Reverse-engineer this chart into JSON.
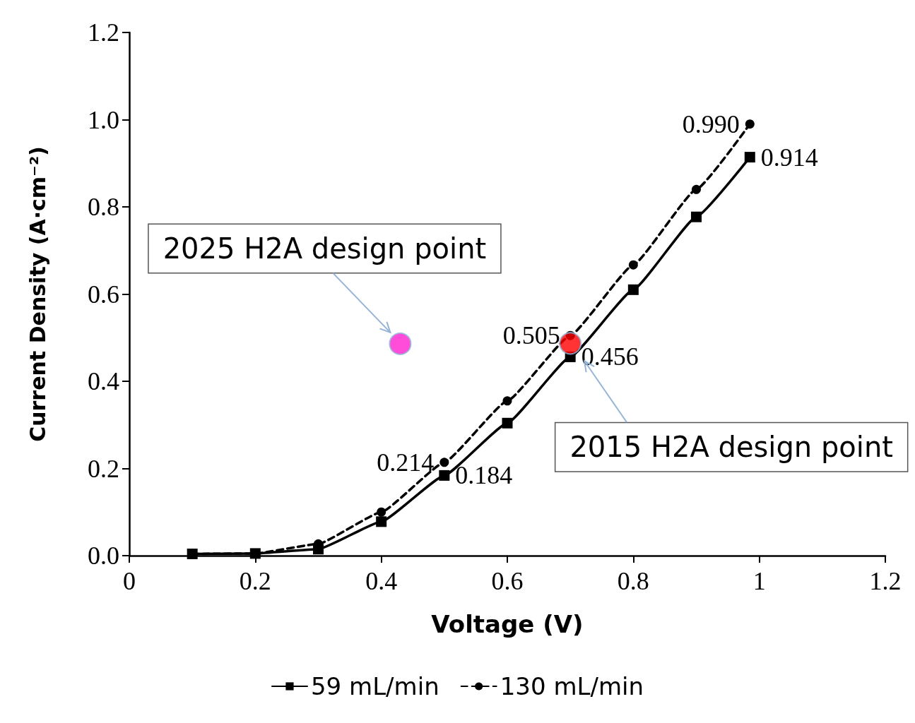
{
  "chart_data": {
    "type": "line",
    "xlabel": "Voltage (V)",
    "ylabel": "Current Density (A·cm⁻²)",
    "x": [
      0.1,
      0.2,
      0.3,
      0.4,
      0.5,
      0.6,
      0.7,
      0.8,
      0.9,
      0.985
    ],
    "series": [
      {
        "name": "59 mL/min",
        "color": "#000000",
        "marker": "square",
        "line_style": "solid",
        "values": [
          0.004,
          0.005,
          0.015,
          0.078,
          0.184,
          0.304,
          0.456,
          0.61,
          0.777,
          0.914
        ],
        "value_labels": [
          null,
          null,
          null,
          null,
          "0.184",
          null,
          "0.456",
          null,
          null,
          "0.914"
        ]
      },
      {
        "name": "130 mL/min",
        "color": "#000000",
        "marker": "circle",
        "line_style": "dashed",
        "values": [
          0.004,
          0.005,
          0.027,
          0.1,
          0.214,
          0.355,
          0.505,
          0.667,
          0.84,
          0.99
        ],
        "value_labels": [
          null,
          null,
          null,
          null,
          "0.214",
          null,
          "0.505",
          null,
          null,
          "0.990"
        ]
      },
      {
        "type": "scatter",
        "color": "#ff1fd0",
        "marker": "circle",
        "x": [
          0.43
        ],
        "values": [
          0.486
        ]
      },
      {
        "type": "scatter",
        "color": "#ff0000",
        "marker": "circle",
        "x": [
          0.7
        ],
        "values": [
          0.487
        ]
      }
    ],
    "annotations": [
      {
        "text": "2025 H2A design point",
        "x": 0.43,
        "y": 0.486
      },
      "2015 H2A design point"
    ],
    "xlim": [
      0,
      1.2
    ],
    "xticks": [
      0,
      0.2,
      0.4,
      0.6,
      0.8,
      1,
      1.2
    ],
    "ylim": [
      0,
      1.2
    ],
    "yticks": [
      {
        "value": 0,
        "label": "0.0"
      },
      {
        "value": 0.2,
        "label": "0.2"
      },
      {
        "value": 0.4,
        "label": "0.4"
      },
      {
        "value": 0.6,
        "label": "0.6"
      },
      {
        "value": 0.8,
        "label": "0.8"
      },
      {
        "value": 1,
        "label": "1.0"
      },
      {
        "value": 1.2,
        "label": "1.2"
      }
    ],
    "grid": false,
    "legend": "bottom"
  }
}
